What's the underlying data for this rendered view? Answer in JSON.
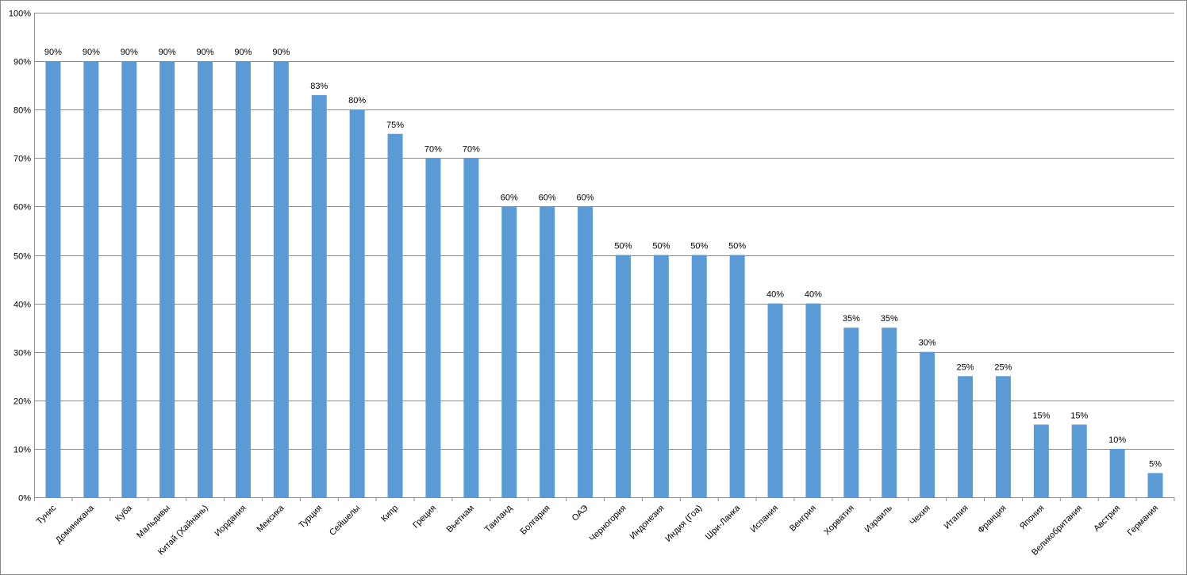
{
  "chart_data": {
    "type": "bar",
    "categories": [
      "Тунис",
      "Доминикана",
      "Куба",
      "Мальдивы",
      "Китай (Хайнань)",
      "Иордания",
      "Мексика",
      "Турция",
      "Сейшелы",
      "Кипр",
      "Греция",
      "Вьетнам",
      "Таиланд",
      "Болгария",
      "ОАЭ",
      "Черногория",
      "Индонезия",
      "Индия (Гоа)",
      "Шри-Ланка",
      "Испания",
      "Венгрия",
      "Хорватия",
      "Израиль",
      "Чехия",
      "Италия",
      "Франция",
      "Япония",
      "Великобритания",
      "Австрия",
      "Германия"
    ],
    "values": [
      90,
      90,
      90,
      90,
      90,
      90,
      90,
      83,
      80,
      75,
      70,
      70,
      60,
      60,
      60,
      50,
      50,
      50,
      50,
      40,
      40,
      35,
      35,
      30,
      25,
      25,
      15,
      15,
      10,
      5
    ],
    "value_labels": [
      "90%",
      "90%",
      "90%",
      "90%",
      "90%",
      "90%",
      "90%",
      "83%",
      "80%",
      "75%",
      "70%",
      "70%",
      "60%",
      "60%",
      "60%",
      "50%",
      "50%",
      "50%",
      "50%",
      "40%",
      "40%",
      "35%",
      "35%",
      "30%",
      "25%",
      "25%",
      "15%",
      "15%",
      "10%",
      "5%"
    ],
    "color": "#5b9bd5",
    "ylim": [
      0,
      100
    ],
    "yticks": [
      {
        "value": 0,
        "label": "0%"
      },
      {
        "value": 10,
        "label": "10%"
      },
      {
        "value": 20,
        "label": "20%"
      },
      {
        "value": 30,
        "label": "30%"
      },
      {
        "value": 40,
        "label": "40%"
      },
      {
        "value": 50,
        "label": "50%"
      },
      {
        "value": 60,
        "label": "60%"
      },
      {
        "value": 70,
        "label": "70%"
      },
      {
        "value": 80,
        "label": "80%"
      },
      {
        "value": 90,
        "label": "90%"
      },
      {
        "value": 100,
        "label": "100%"
      }
    ],
    "grid": true
  }
}
